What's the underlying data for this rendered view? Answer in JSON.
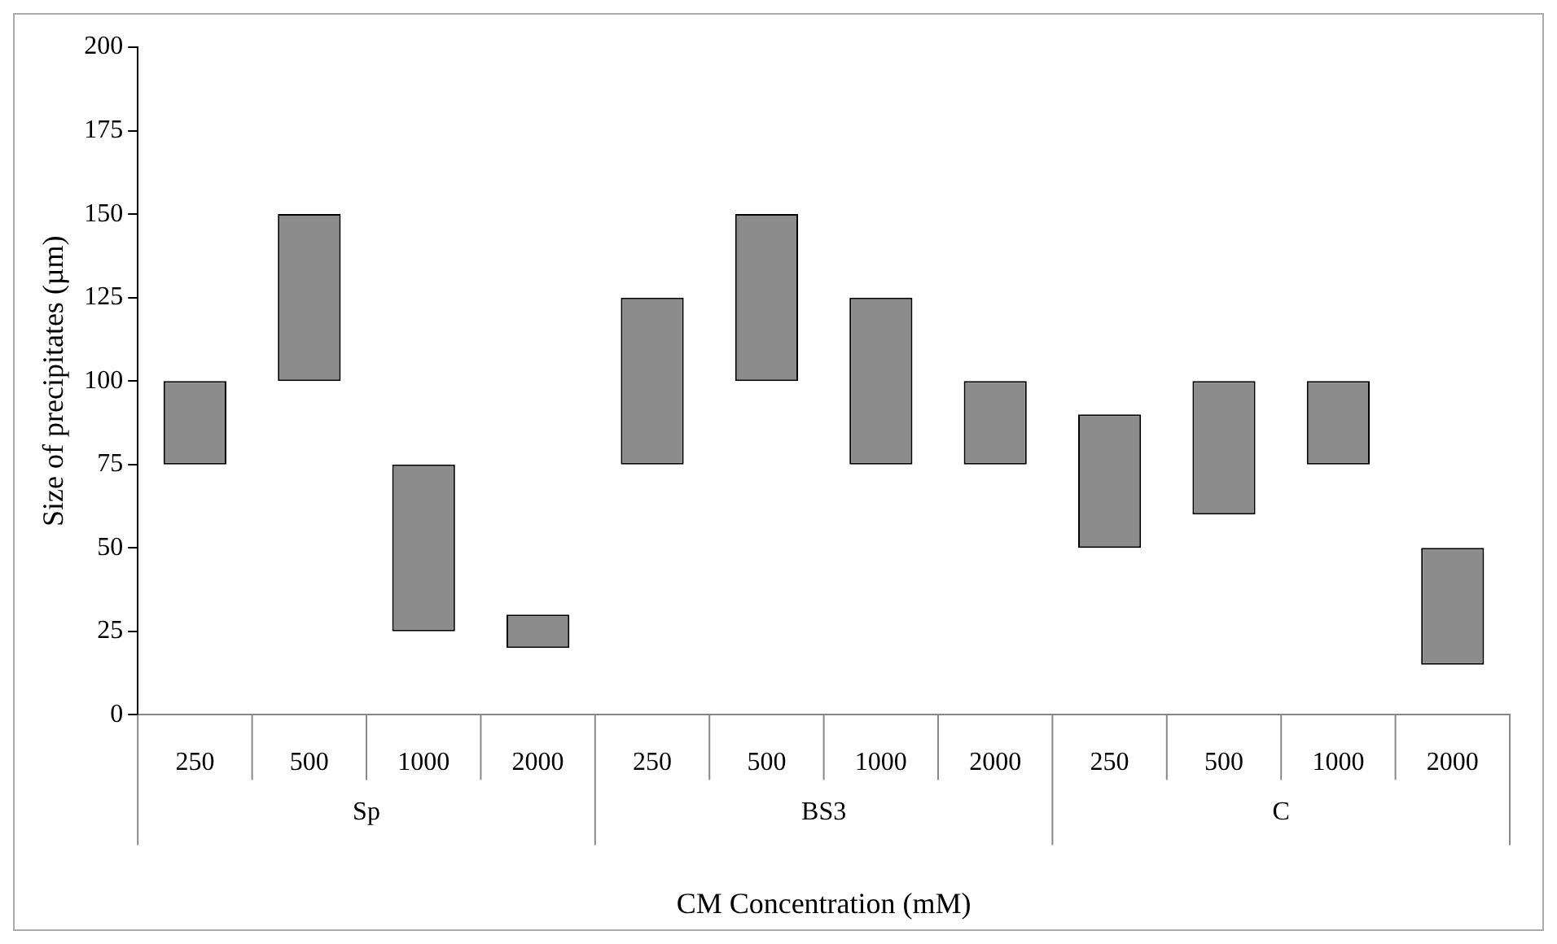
{
  "chart_data": {
    "type": "bar",
    "ylabel": "Size of precipitates (µm)",
    "xlabel": "CM Concentration (mM)",
    "categories": [
      "250",
      "500",
      "1000",
      "2000",
      "250",
      "500",
      "1000",
      "2000",
      "250",
      "500",
      "1000",
      "2000"
    ],
    "base": [
      75,
      100,
      25,
      20,
      75,
      100,
      75,
      75,
      50,
      60,
      75,
      15
    ],
    "values": [
      25,
      50,
      50,
      10,
      50,
      50,
      50,
      25,
      40,
      40,
      25,
      35
    ],
    "color": "#8c8c8c",
    "annotations": [
      "Sp",
      "BS3",
      "C"
    ],
    "ylim": [
      0,
      200
    ],
    "yticks": [
      0,
      25,
      50,
      75,
      100,
      125,
      150,
      175,
      200
    ],
    "grid": false,
    "legend": false
  }
}
